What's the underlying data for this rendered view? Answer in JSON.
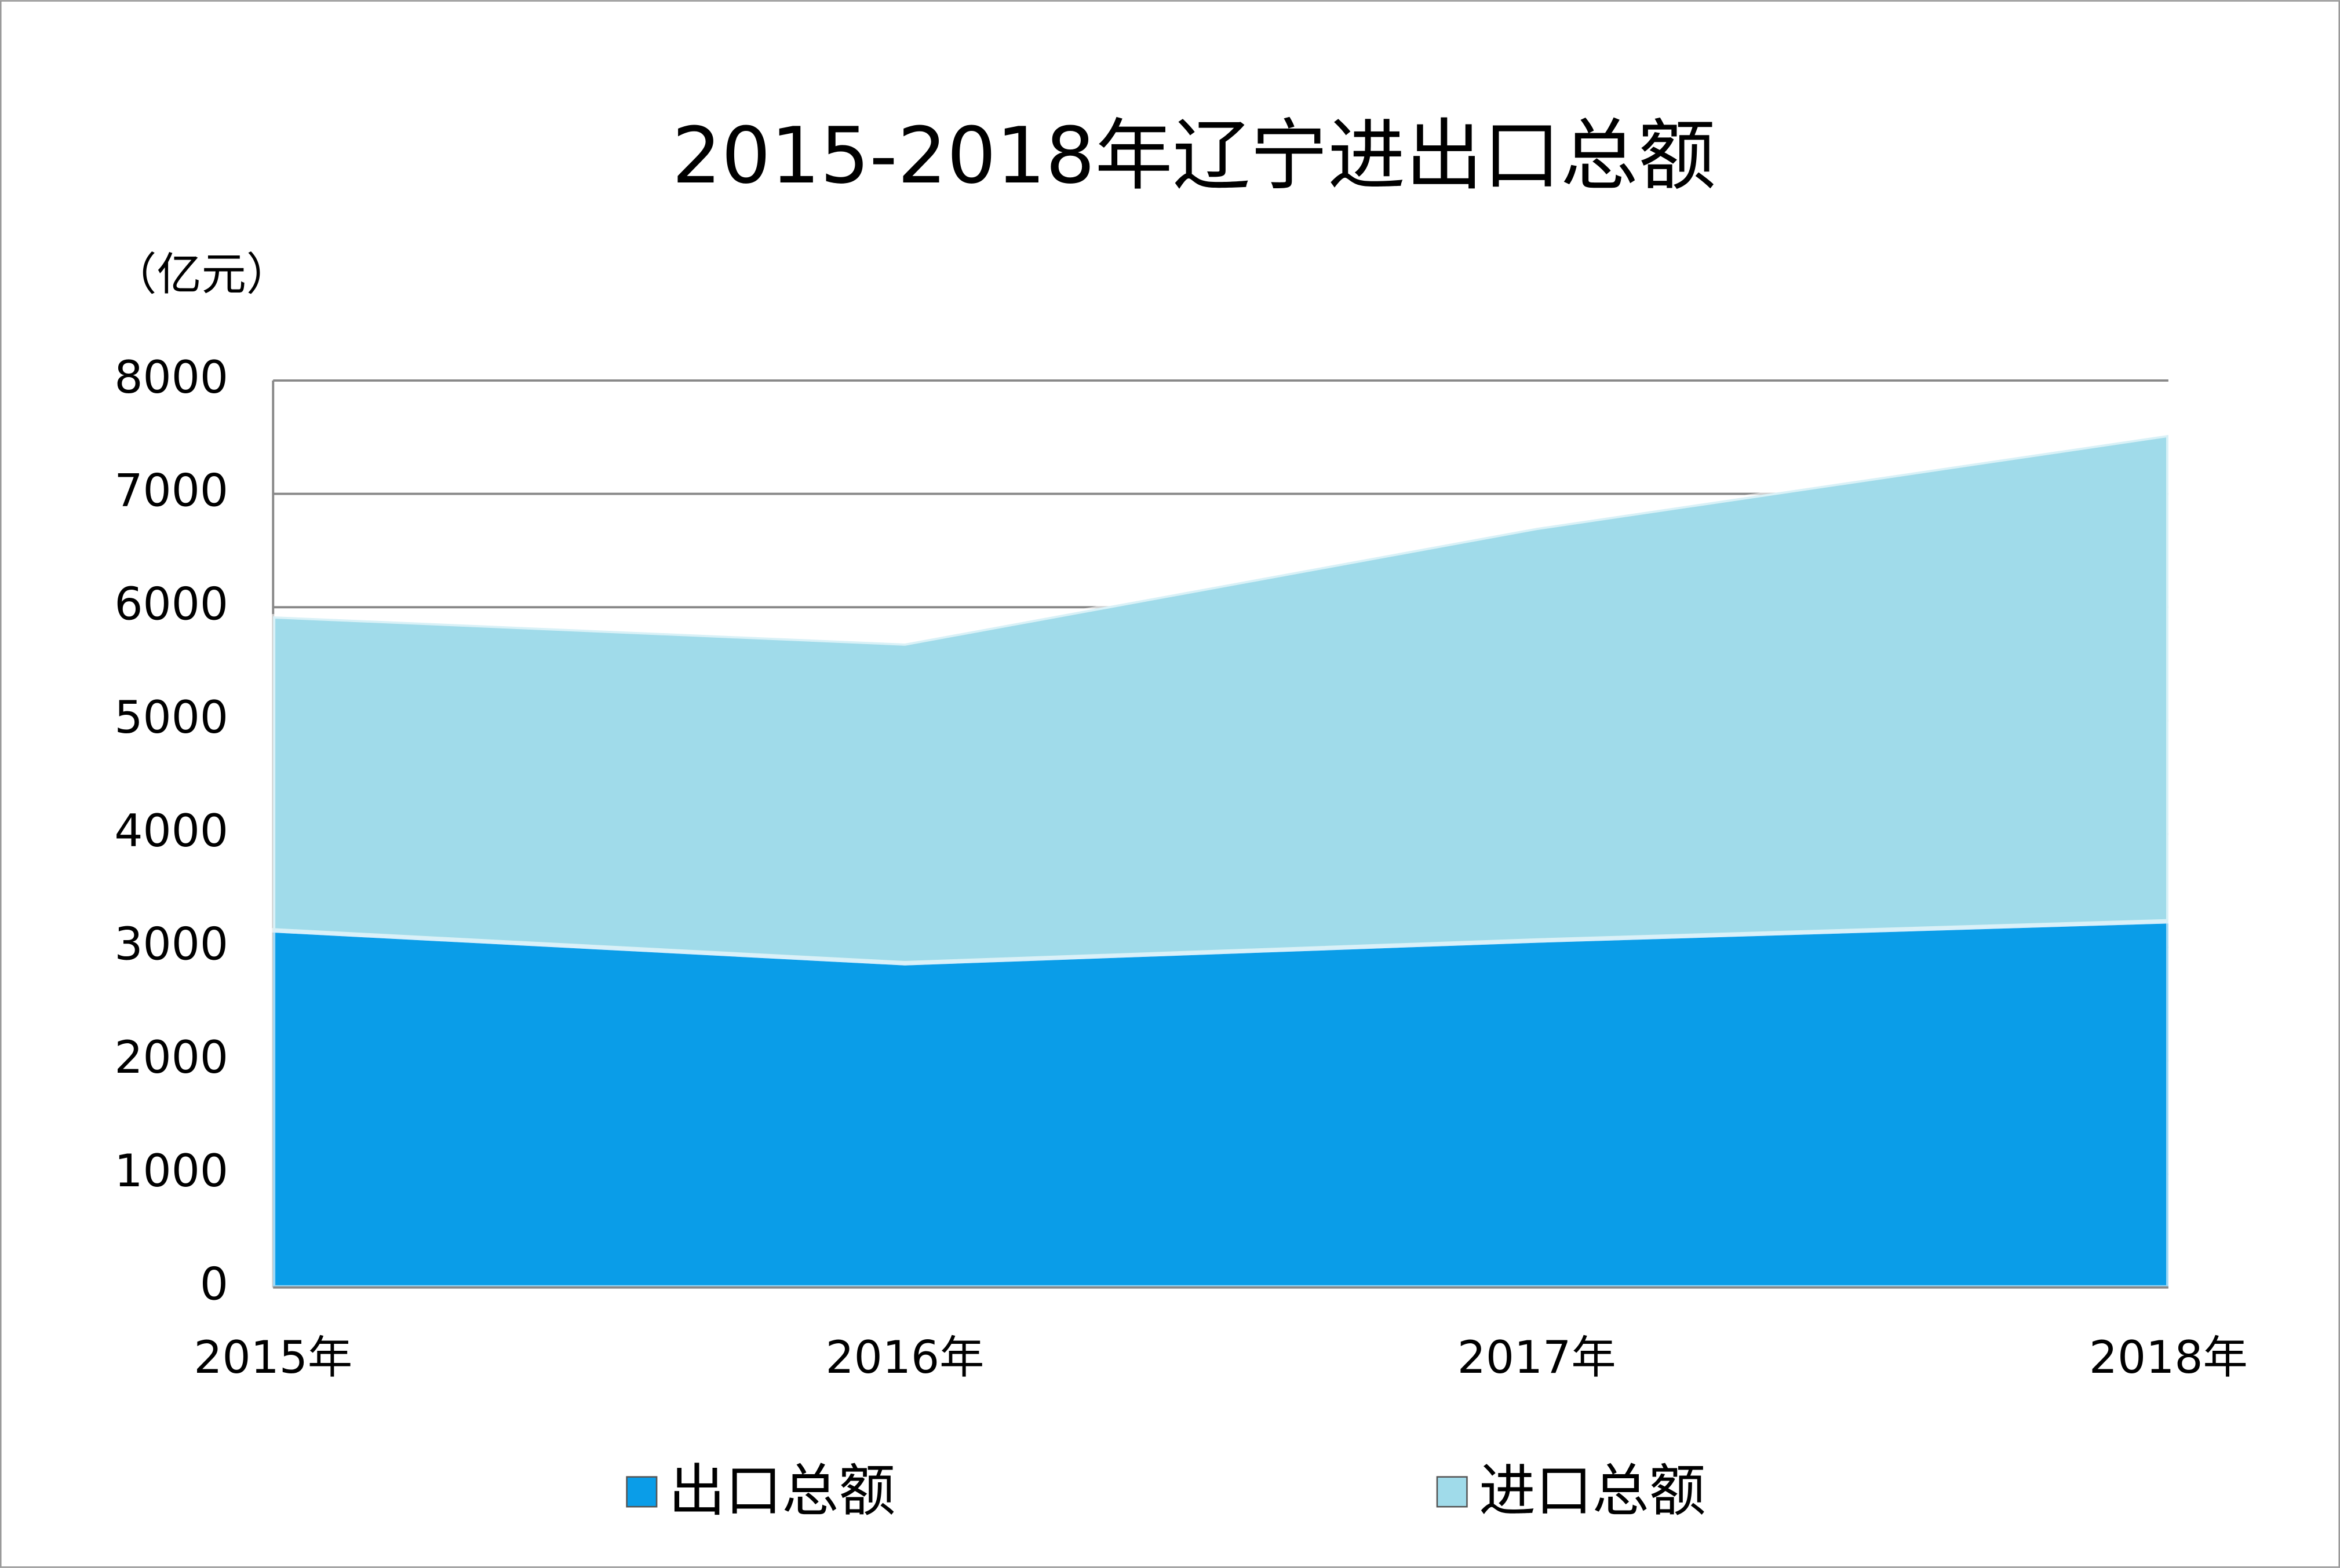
{
  "chart_data": {
    "type": "stacked_area",
    "title": "2015-2018年辽宁进出口总额",
    "y_label": "（亿元）",
    "categories": [
      "2015年",
      "2016年",
      "2017年",
      "2018年"
    ],
    "series": [
      {
        "name": "出口总额",
        "color": "#0a9de8",
        "values": [
          3150,
          2860,
          3060,
          3230
        ]
      },
      {
        "name": "进口总额",
        "color": "#a0dbea",
        "values": [
          2770,
          2820,
          3640,
          4290
        ]
      }
    ],
    "ylim": [
      0,
      8000
    ],
    "yticks": [
      0,
      1000,
      2000,
      3000,
      4000,
      5000,
      6000,
      7000,
      8000
    ],
    "grid": true,
    "legend": "bottom"
  }
}
